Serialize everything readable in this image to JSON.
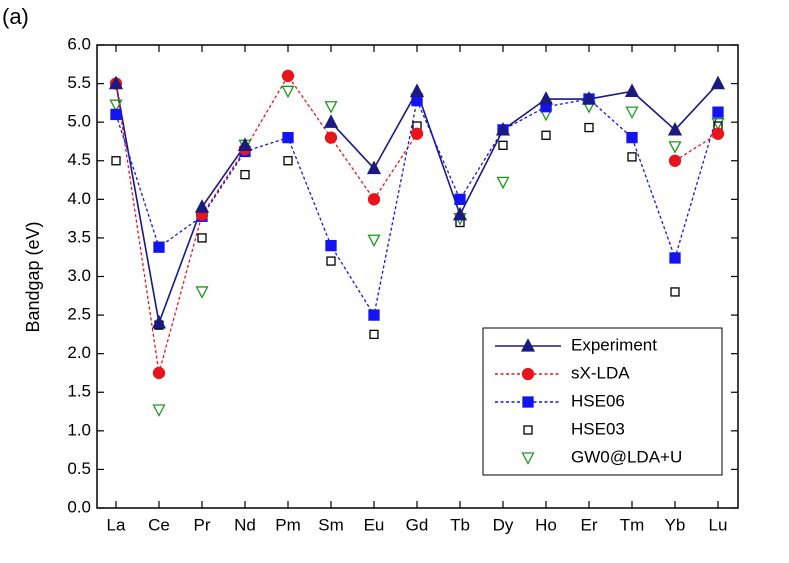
{
  "chart_data": {
    "type": "line",
    "panel_label": "(a)",
    "y_label": "Bandgap (eV)",
    "categories": [
      "La",
      "Ce",
      "Pr",
      "Nd",
      "Pm",
      "Sm",
      "Eu",
      "Gd",
      "Tb",
      "Dy",
      "Ho",
      "Er",
      "Tm",
      "Yb",
      "Lu"
    ],
    "ylim": [
      0,
      6
    ],
    "yticks": [
      {
        "value": 0,
        "label": "0.0"
      },
      0.5,
      {
        "value": 1,
        "label": "1.0"
      },
      1.5,
      {
        "value": 2,
        "label": "2.0"
      },
      2.5,
      {
        "value": 3,
        "label": "3.0"
      },
      3.5,
      {
        "value": 4,
        "label": "4.0"
      },
      4.5,
      {
        "value": 5,
        "label": "5.0"
      },
      5.5,
      {
        "value": 6,
        "label": "6.0"
      }
    ],
    "series": [
      {
        "name": "Experiment",
        "color": "#1a1a80",
        "marker": "triangle",
        "fill": true,
        "line": "solid",
        "values": [
          5.5,
          2.4,
          3.9,
          4.7,
          null,
          5.0,
          4.4,
          5.4,
          3.8,
          4.9,
          5.3,
          5.3,
          5.4,
          4.9,
          5.5
        ]
      },
      {
        "name": "sX-LDA",
        "color": "#e8141c",
        "marker": "circle",
        "fill": true,
        "line": "dashed",
        "values": [
          5.5,
          1.75,
          3.8,
          4.65,
          5.6,
          4.8,
          4.0,
          4.85,
          null,
          null,
          null,
          null,
          null,
          4.5,
          4.85
        ]
      },
      {
        "name": "HSE06",
        "color": "#1414f0",
        "marker": "square",
        "fill": true,
        "line": "dashed",
        "values": [
          5.1,
          3.38,
          3.78,
          4.62,
          4.8,
          3.4,
          2.5,
          5.28,
          4.0,
          4.9,
          5.2,
          5.3,
          4.8,
          3.24,
          5.13
        ]
      },
      {
        "name": "HSE03",
        "color": "#000000",
        "marker": "square",
        "fill": false,
        "line": "none",
        "values": [
          4.5,
          2.37,
          3.5,
          4.32,
          4.5,
          3.2,
          2.25,
          4.95,
          3.7,
          4.7,
          4.83,
          4.93,
          4.55,
          2.8,
          4.95
        ]
      },
      {
        "name": "GW0@LDA+U",
        "color": "#1a9a1a",
        "marker": "triangle-down",
        "fill": false,
        "line": "none",
        "values": [
          5.22,
          1.27,
          2.8,
          4.7,
          5.4,
          5.2,
          3.47,
          5.3,
          3.75,
          4.22,
          5.1,
          5.2,
          5.13,
          4.68,
          4.98
        ]
      }
    ]
  }
}
